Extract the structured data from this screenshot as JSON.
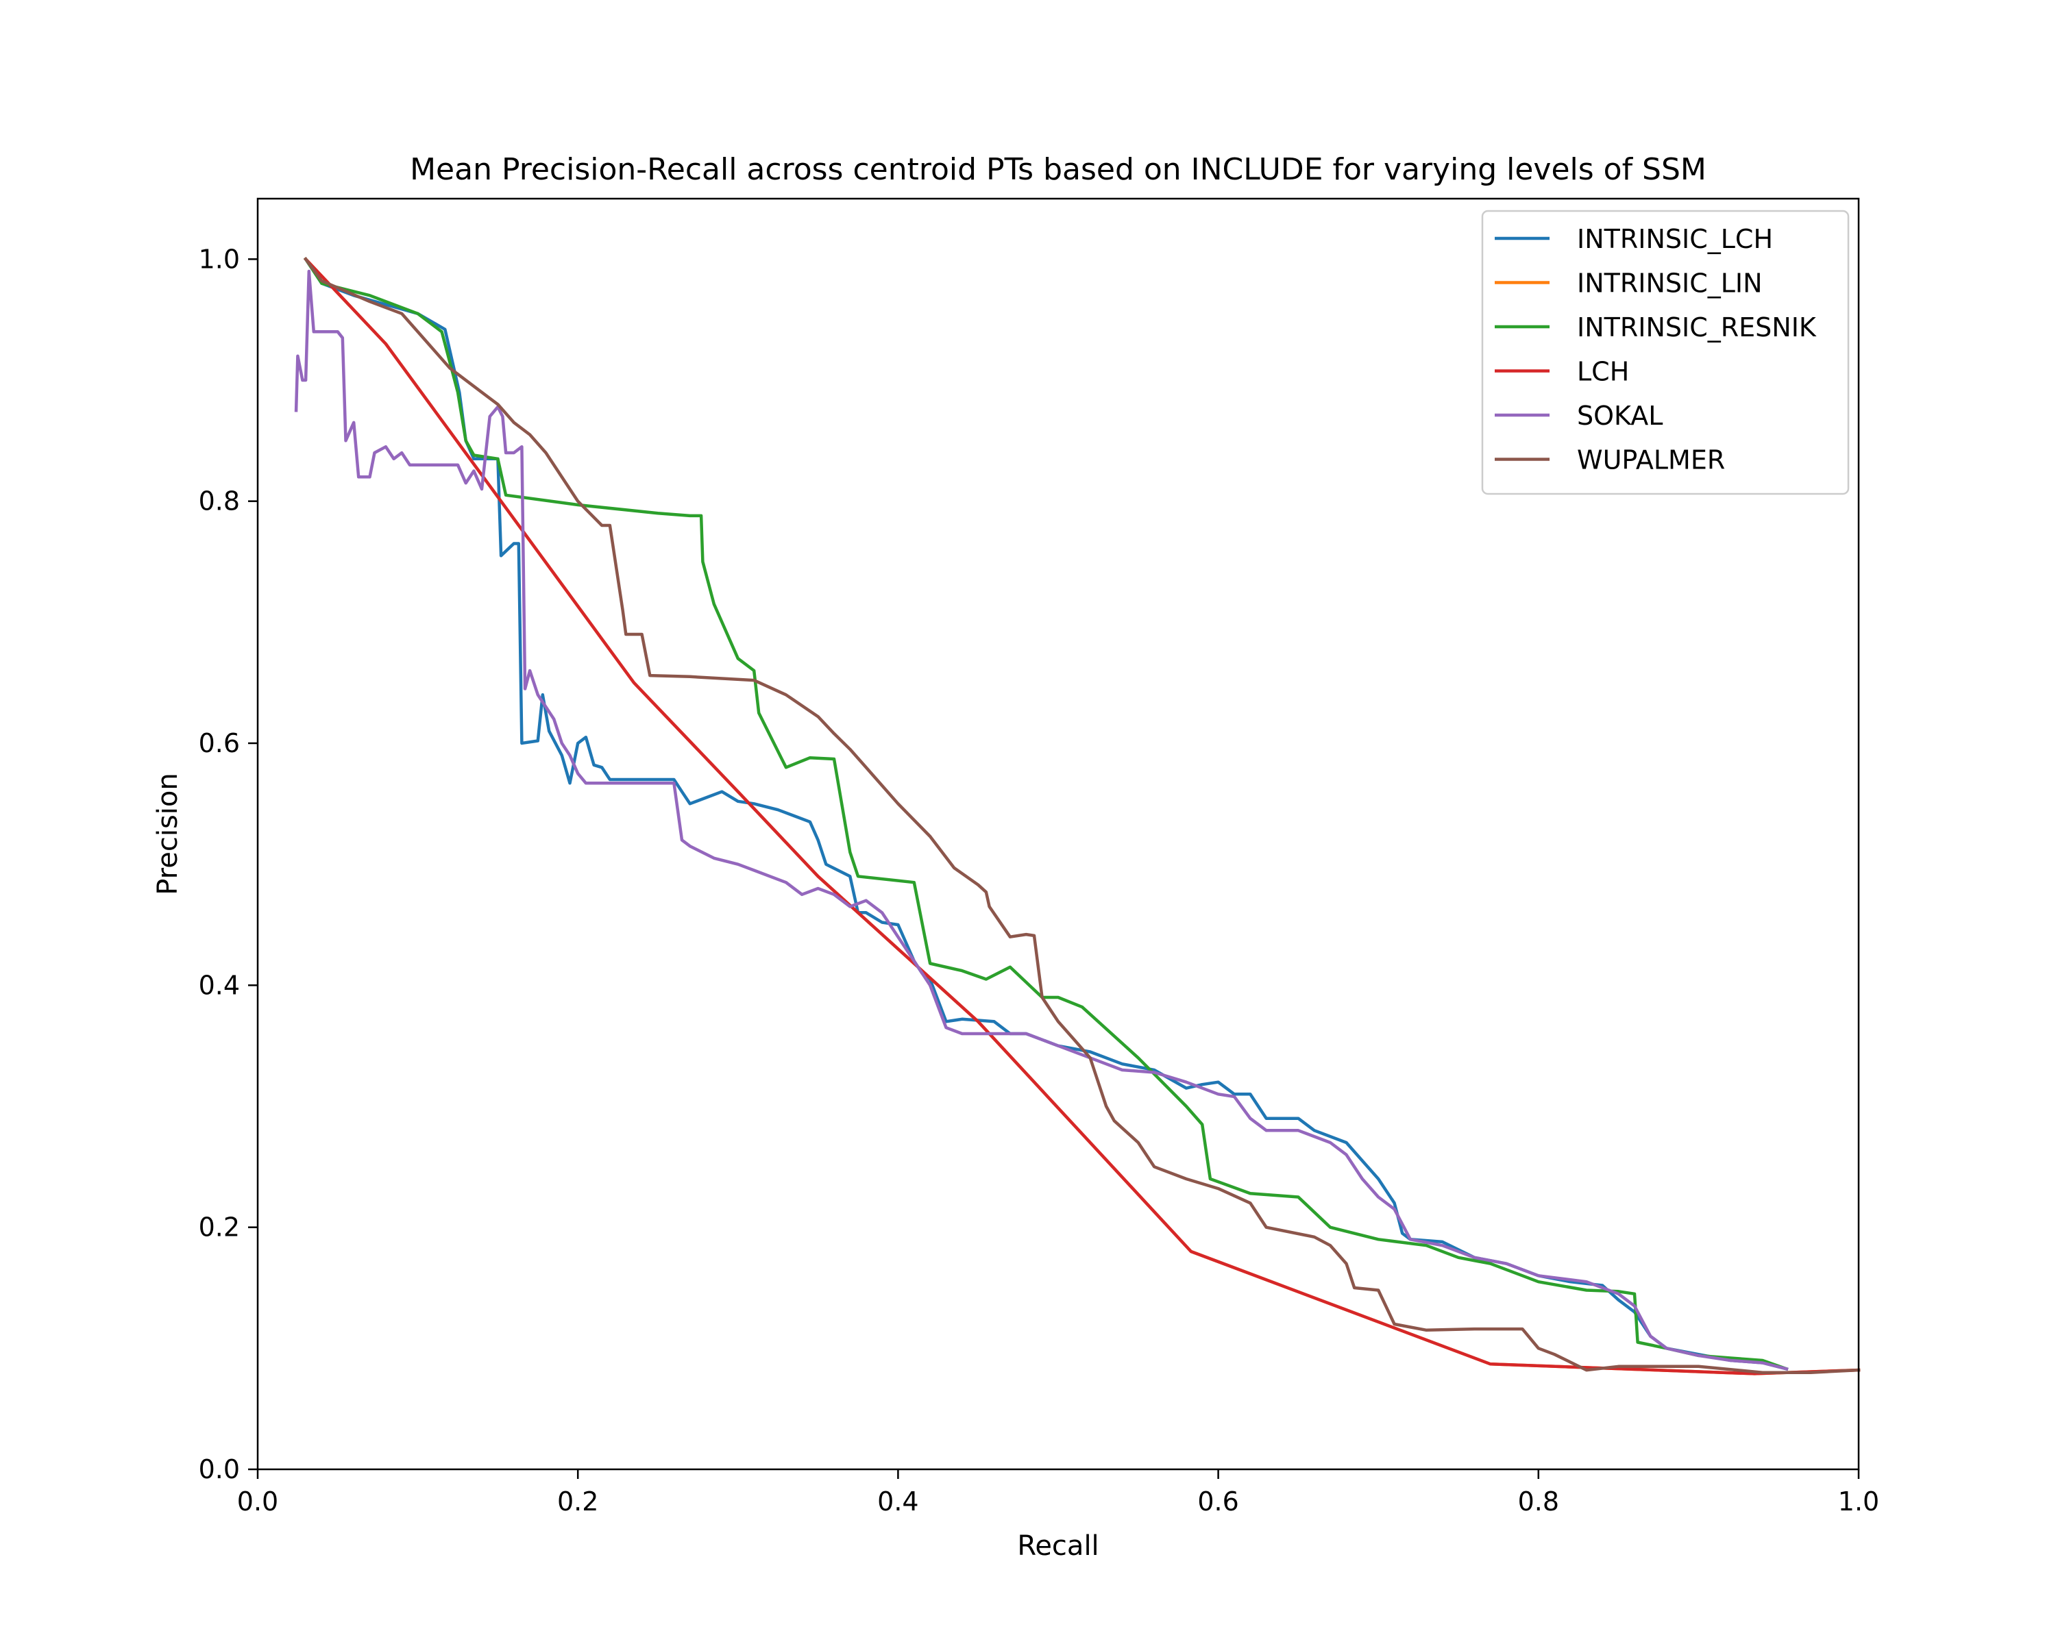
{
  "chart_data": {
    "type": "line",
    "title": "Mean Precision-Recall across centroid PTs based on INCLUDE for varying levels of SSM",
    "xlabel": "Recall",
    "ylabel": "Precision",
    "xlim": [
      0.0,
      1.0
    ],
    "ylim": [
      0.0,
      1.05
    ],
    "x_ticks": [
      "0.0",
      "0.2",
      "0.4",
      "0.6",
      "0.8",
      "1.0"
    ],
    "y_ticks": [
      "0.0",
      "0.2",
      "0.4",
      "0.6",
      "0.8",
      "1.0"
    ],
    "grid": false,
    "legend_position": "top-right",
    "series": [
      {
        "name": "INTRINSIC_LCH",
        "color": "#1f77b4",
        "points": [
          [
            0.03,
            1.0
          ],
          [
            0.04,
            0.98
          ],
          [
            0.06,
            0.97
          ],
          [
            0.1,
            0.955
          ],
          [
            0.117,
            0.942
          ],
          [
            0.126,
            0.89
          ],
          [
            0.13,
            0.85
          ],
          [
            0.135,
            0.835
          ],
          [
            0.15,
            0.835
          ],
          [
            0.152,
            0.755
          ],
          [
            0.16,
            0.765
          ],
          [
            0.163,
            0.765
          ],
          [
            0.165,
            0.6
          ],
          [
            0.175,
            0.602
          ],
          [
            0.178,
            0.64
          ],
          [
            0.182,
            0.61
          ],
          [
            0.19,
            0.59
          ],
          [
            0.195,
            0.567
          ],
          [
            0.2,
            0.6
          ],
          [
            0.205,
            0.605
          ],
          [
            0.21,
            0.582
          ],
          [
            0.215,
            0.58
          ],
          [
            0.22,
            0.57
          ],
          [
            0.235,
            0.57
          ],
          [
            0.26,
            0.57
          ],
          [
            0.265,
            0.56
          ],
          [
            0.27,
            0.55
          ],
          [
            0.28,
            0.555
          ],
          [
            0.29,
            0.56
          ],
          [
            0.3,
            0.552
          ],
          [
            0.31,
            0.55
          ],
          [
            0.325,
            0.545
          ],
          [
            0.335,
            0.54
          ],
          [
            0.345,
            0.535
          ],
          [
            0.35,
            0.52
          ],
          [
            0.355,
            0.5
          ],
          [
            0.37,
            0.49
          ],
          [
            0.375,
            0.46
          ],
          [
            0.38,
            0.46
          ],
          [
            0.39,
            0.452
          ],
          [
            0.4,
            0.45
          ],
          [
            0.41,
            0.42
          ],
          [
            0.415,
            0.41
          ],
          [
            0.42,
            0.405
          ],
          [
            0.43,
            0.37
          ],
          [
            0.44,
            0.372
          ],
          [
            0.46,
            0.37
          ],
          [
            0.47,
            0.36
          ],
          [
            0.48,
            0.36
          ],
          [
            0.49,
            0.355
          ],
          [
            0.5,
            0.35
          ],
          [
            0.52,
            0.345
          ],
          [
            0.54,
            0.335
          ],
          [
            0.56,
            0.33
          ],
          [
            0.58,
            0.315
          ],
          [
            0.59,
            0.318
          ],
          [
            0.6,
            0.32
          ],
          [
            0.61,
            0.31
          ],
          [
            0.62,
            0.31
          ],
          [
            0.63,
            0.29
          ],
          [
            0.65,
            0.29
          ],
          [
            0.66,
            0.28
          ],
          [
            0.68,
            0.27
          ],
          [
            0.69,
            0.255
          ],
          [
            0.7,
            0.24
          ],
          [
            0.71,
            0.22
          ],
          [
            0.715,
            0.195
          ],
          [
            0.72,
            0.19
          ],
          [
            0.74,
            0.188
          ],
          [
            0.76,
            0.175
          ],
          [
            0.78,
            0.17
          ],
          [
            0.8,
            0.16
          ],
          [
            0.82,
            0.155
          ],
          [
            0.84,
            0.152
          ],
          [
            0.85,
            0.14
          ],
          [
            0.86,
            0.13
          ],
          [
            0.87,
            0.11
          ],
          [
            0.88,
            0.1
          ],
          [
            0.9,
            0.095
          ],
          [
            0.92,
            0.09
          ],
          [
            0.94,
            0.088
          ],
          [
            0.955,
            0.083
          ]
        ]
      },
      {
        "name": "INTRINSIC_LIN",
        "color": "#ff7f0e",
        "points": [
          [
            0.03,
            1.0
          ],
          [
            0.08,
            0.93
          ],
          [
            0.235,
            0.65
          ],
          [
            0.3,
            0.56
          ],
          [
            0.35,
            0.49
          ],
          [
            0.4,
            0.43
          ],
          [
            0.45,
            0.37
          ],
          [
            0.583,
            0.18
          ],
          [
            0.77,
            0.087
          ],
          [
            0.935,
            0.079
          ],
          [
            1.0,
            0.082
          ]
        ]
      },
      {
        "name": "INTRINSIC_RESNIK",
        "color": "#2ca02c",
        "points": [
          [
            0.03,
            1.0
          ],
          [
            0.04,
            0.98
          ],
          [
            0.07,
            0.97
          ],
          [
            0.1,
            0.955
          ],
          [
            0.115,
            0.94
          ],
          [
            0.125,
            0.89
          ],
          [
            0.13,
            0.85
          ],
          [
            0.135,
            0.838
          ],
          [
            0.15,
            0.835
          ],
          [
            0.155,
            0.805
          ],
          [
            0.2,
            0.797
          ],
          [
            0.25,
            0.79
          ],
          [
            0.27,
            0.788
          ],
          [
            0.277,
            0.788
          ],
          [
            0.278,
            0.75
          ],
          [
            0.285,
            0.715
          ],
          [
            0.3,
            0.67
          ],
          [
            0.31,
            0.66
          ],
          [
            0.313,
            0.625
          ],
          [
            0.33,
            0.58
          ],
          [
            0.345,
            0.588
          ],
          [
            0.36,
            0.587
          ],
          [
            0.37,
            0.51
          ],
          [
            0.375,
            0.49
          ],
          [
            0.41,
            0.485
          ],
          [
            0.42,
            0.418
          ],
          [
            0.44,
            0.412
          ],
          [
            0.455,
            0.405
          ],
          [
            0.47,
            0.415
          ],
          [
            0.49,
            0.39
          ],
          [
            0.5,
            0.39
          ],
          [
            0.515,
            0.382
          ],
          [
            0.55,
            0.34
          ],
          [
            0.58,
            0.3
          ],
          [
            0.59,
            0.285
          ],
          [
            0.595,
            0.24
          ],
          [
            0.62,
            0.228
          ],
          [
            0.65,
            0.225
          ],
          [
            0.67,
            0.2
          ],
          [
            0.7,
            0.19
          ],
          [
            0.73,
            0.185
          ],
          [
            0.75,
            0.175
          ],
          [
            0.77,
            0.17
          ],
          [
            0.79,
            0.16
          ],
          [
            0.8,
            0.155
          ],
          [
            0.83,
            0.148
          ],
          [
            0.85,
            0.147
          ],
          [
            0.86,
            0.145
          ],
          [
            0.862,
            0.105
          ],
          [
            0.88,
            0.1
          ],
          [
            0.9,
            0.094
          ],
          [
            0.92,
            0.092
          ],
          [
            0.94,
            0.09
          ],
          [
            0.955,
            0.083
          ]
        ]
      },
      {
        "name": "LCH",
        "color": "#d62728",
        "points": [
          [
            0.03,
            1.0
          ],
          [
            0.08,
            0.93
          ],
          [
            0.235,
            0.65
          ],
          [
            0.3,
            0.56
          ],
          [
            0.35,
            0.49
          ],
          [
            0.4,
            0.43
          ],
          [
            0.45,
            0.37
          ],
          [
            0.583,
            0.18
          ],
          [
            0.77,
            0.087
          ],
          [
            0.935,
            0.079
          ],
          [
            1.0,
            0.082
          ]
        ]
      },
      {
        "name": "SOKAL",
        "color": "#9467bd",
        "points": [
          [
            0.024,
            0.875
          ],
          [
            0.025,
            0.92
          ],
          [
            0.028,
            0.9
          ],
          [
            0.03,
            0.9
          ],
          [
            0.032,
            0.99
          ],
          [
            0.035,
            0.94
          ],
          [
            0.05,
            0.94
          ],
          [
            0.053,
            0.935
          ],
          [
            0.055,
            0.85
          ],
          [
            0.06,
            0.865
          ],
          [
            0.063,
            0.82
          ],
          [
            0.07,
            0.82
          ],
          [
            0.073,
            0.84
          ],
          [
            0.08,
            0.845
          ],
          [
            0.085,
            0.835
          ],
          [
            0.09,
            0.84
          ],
          [
            0.095,
            0.83
          ],
          [
            0.11,
            0.83
          ],
          [
            0.125,
            0.83
          ],
          [
            0.13,
            0.815
          ],
          [
            0.135,
            0.825
          ],
          [
            0.14,
            0.81
          ],
          [
            0.145,
            0.87
          ],
          [
            0.15,
            0.878
          ],
          [
            0.153,
            0.87
          ],
          [
            0.155,
            0.84
          ],
          [
            0.16,
            0.84
          ],
          [
            0.165,
            0.845
          ],
          [
            0.167,
            0.645
          ],
          [
            0.17,
            0.66
          ],
          [
            0.175,
            0.64
          ],
          [
            0.18,
            0.63
          ],
          [
            0.185,
            0.62
          ],
          [
            0.19,
            0.6
          ],
          [
            0.195,
            0.59
          ],
          [
            0.2,
            0.575
          ],
          [
            0.205,
            0.567
          ],
          [
            0.22,
            0.567
          ],
          [
            0.26,
            0.567
          ],
          [
            0.265,
            0.52
          ],
          [
            0.27,
            0.515
          ],
          [
            0.285,
            0.505
          ],
          [
            0.3,
            0.5
          ],
          [
            0.31,
            0.495
          ],
          [
            0.33,
            0.485
          ],
          [
            0.34,
            0.475
          ],
          [
            0.35,
            0.48
          ],
          [
            0.36,
            0.475
          ],
          [
            0.37,
            0.465
          ],
          [
            0.38,
            0.47
          ],
          [
            0.39,
            0.46
          ],
          [
            0.4,
            0.44
          ],
          [
            0.41,
            0.42
          ],
          [
            0.42,
            0.4
          ],
          [
            0.43,
            0.365
          ],
          [
            0.44,
            0.36
          ],
          [
            0.46,
            0.36
          ],
          [
            0.48,
            0.36
          ],
          [
            0.5,
            0.35
          ],
          [
            0.52,
            0.34
          ],
          [
            0.54,
            0.33
          ],
          [
            0.56,
            0.328
          ],
          [
            0.58,
            0.32
          ],
          [
            0.6,
            0.31
          ],
          [
            0.61,
            0.308
          ],
          [
            0.62,
            0.29
          ],
          [
            0.63,
            0.28
          ],
          [
            0.65,
            0.28
          ],
          [
            0.67,
            0.27
          ],
          [
            0.68,
            0.26
          ],
          [
            0.69,
            0.24
          ],
          [
            0.7,
            0.225
          ],
          [
            0.71,
            0.215
          ],
          [
            0.72,
            0.19
          ],
          [
            0.74,
            0.185
          ],
          [
            0.76,
            0.175
          ],
          [
            0.78,
            0.17
          ],
          [
            0.8,
            0.16
          ],
          [
            0.83,
            0.155
          ],
          [
            0.85,
            0.145
          ],
          [
            0.86,
            0.135
          ],
          [
            0.87,
            0.11
          ],
          [
            0.88,
            0.1
          ],
          [
            0.9,
            0.094
          ],
          [
            0.92,
            0.09
          ],
          [
            0.94,
            0.088
          ],
          [
            0.955,
            0.083
          ]
        ]
      },
      {
        "name": "WUPALMER",
        "color": "#8c564b",
        "points": [
          [
            0.03,
            1.0
          ],
          [
            0.04,
            0.982
          ],
          [
            0.07,
            0.965
          ],
          [
            0.09,
            0.955
          ],
          [
            0.1,
            0.94
          ],
          [
            0.12,
            0.91
          ],
          [
            0.14,
            0.89
          ],
          [
            0.15,
            0.88
          ],
          [
            0.16,
            0.865
          ],
          [
            0.17,
            0.855
          ],
          [
            0.18,
            0.84
          ],
          [
            0.2,
            0.8
          ],
          [
            0.215,
            0.78
          ],
          [
            0.22,
            0.78
          ],
          [
            0.228,
            0.71
          ],
          [
            0.23,
            0.69
          ],
          [
            0.24,
            0.69
          ],
          [
            0.245,
            0.656
          ],
          [
            0.27,
            0.655
          ],
          [
            0.31,
            0.652
          ],
          [
            0.33,
            0.64
          ],
          [
            0.35,
            0.622
          ],
          [
            0.36,
            0.608
          ],
          [
            0.37,
            0.595
          ],
          [
            0.38,
            0.58
          ],
          [
            0.4,
            0.55
          ],
          [
            0.42,
            0.523
          ],
          [
            0.435,
            0.497
          ],
          [
            0.45,
            0.483
          ],
          [
            0.455,
            0.477
          ],
          [
            0.457,
            0.465
          ],
          [
            0.47,
            0.44
          ],
          [
            0.48,
            0.442
          ],
          [
            0.485,
            0.441
          ],
          [
            0.49,
            0.39
          ],
          [
            0.5,
            0.37
          ],
          [
            0.51,
            0.355
          ],
          [
            0.52,
            0.34
          ],
          [
            0.525,
            0.32
          ],
          [
            0.53,
            0.3
          ],
          [
            0.535,
            0.288
          ],
          [
            0.55,
            0.27
          ],
          [
            0.56,
            0.25
          ],
          [
            0.58,
            0.24
          ],
          [
            0.6,
            0.232
          ],
          [
            0.62,
            0.22
          ],
          [
            0.63,
            0.2
          ],
          [
            0.66,
            0.192
          ],
          [
            0.67,
            0.185
          ],
          [
            0.68,
            0.17
          ],
          [
            0.685,
            0.15
          ],
          [
            0.7,
            0.148
          ],
          [
            0.71,
            0.12
          ],
          [
            0.73,
            0.115
          ],
          [
            0.76,
            0.116
          ],
          [
            0.79,
            0.116
          ],
          [
            0.8,
            0.1
          ],
          [
            0.81,
            0.095
          ],
          [
            0.83,
            0.082
          ],
          [
            0.85,
            0.085
          ],
          [
            0.87,
            0.085
          ],
          [
            0.9,
            0.085
          ],
          [
            0.94,
            0.08
          ],
          [
            0.97,
            0.08
          ],
          [
            1.0,
            0.082
          ]
        ]
      }
    ]
  }
}
